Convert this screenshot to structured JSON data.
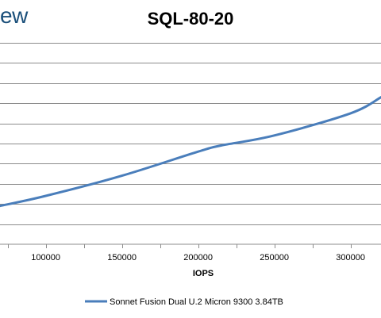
{
  "watermark": "ew",
  "chart_data": {
    "type": "line",
    "title": "SQL-80-20",
    "xlabel": "IOPS",
    "ylabel": "",
    "xlim": [
      70000,
      320000
    ],
    "x_ticks": [
      100000,
      150000,
      200000,
      250000,
      300000
    ],
    "x_tick_labels": [
      "100000",
      "150000",
      "200000",
      "250000",
      "300000"
    ],
    "grid": true,
    "legend_position": "bottom",
    "series": [
      {
        "name": "Sonnet Fusion Dual U.2 Micron 9300 3.84TB",
        "color": "#4a7ebb",
        "x": [
          70000,
          100000,
          150000,
          200000,
          215000,
          250000,
          300000,
          320000
        ],
        "y": [
          0.19,
          0.24,
          0.34,
          0.46,
          0.49,
          0.54,
          0.65,
          0.73
        ]
      }
    ]
  }
}
